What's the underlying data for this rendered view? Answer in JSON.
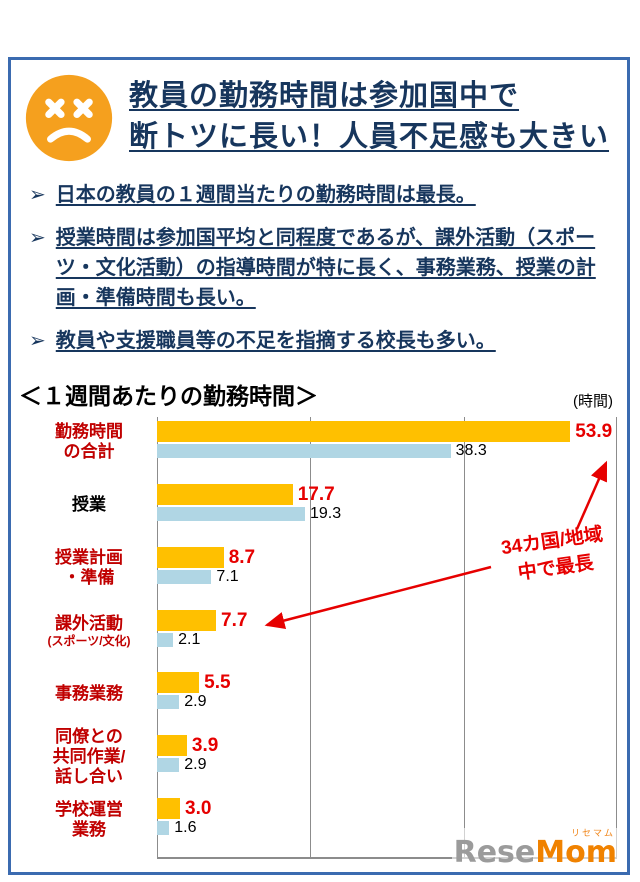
{
  "header": {
    "title_line1": "教員の勤務時間は参加国中で",
    "title_line2": "断トツに長い！人員不足感も大きい"
  },
  "bullets": [
    {
      "marker": "➢",
      "text": "日本の教員の１週間当たりの勤務時間は最長。"
    },
    {
      "marker": "➢",
      "text": "授業時間は参加国平均と同程度であるが、課外活動（スポーツ・文化活動）の指導時間が特に長く、事務業務、授業の計画・準備時間も長い。"
    },
    {
      "marker": "➢",
      "text": "教員や支援職員等の不足を指摘する校長も多い。"
    }
  ],
  "chart_header": {
    "title": "＜１週間あたりの勤務時間＞",
    "unit": "(時間)"
  },
  "chart_data": {
    "type": "bar",
    "orientation": "horizontal",
    "title": "１週間あたりの勤務時間",
    "unit_label": "時間",
    "xlim": [
      0,
      60
    ],
    "gridlines": [
      0,
      20,
      40,
      60
    ],
    "grid": true,
    "legend": "none",
    "categories": [
      "勤務時間\nの合計",
      "授業",
      "授業計画\n・準備",
      "課外活動\n(スポーツ/文化)",
      "事務業務",
      "同僚との\n共同作業/\n話し合い",
      "学校運営\n業務"
    ],
    "label_colors": [
      "#c00000",
      "#000000",
      "#c00000",
      "#c00000",
      "#c00000",
      "#c00000",
      "#c00000"
    ],
    "series": [
      {
        "name": "orange",
        "color": "#ffc000",
        "values": [
          53.9,
          17.7,
          8.7,
          7.7,
          5.5,
          3.9,
          3.0
        ]
      },
      {
        "name": "light-blue",
        "color": "#b0d6e4",
        "values": [
          38.3,
          19.3,
          7.1,
          2.1,
          2.9,
          2.9,
          1.6
        ]
      }
    ]
  },
  "annotation": {
    "text": "34カ国/地域\n中で最長"
  },
  "logo": {
    "ruby": "リセマム",
    "part1": "Rese",
    "part2": "Mom"
  },
  "colors": {
    "frame_border": "#3b6bb0",
    "title_text": "#17365d",
    "face_icon": "#f5a01e",
    "bar_orange": "#ffc000",
    "bar_blue": "#b0d6e4",
    "value_red": "#e60000",
    "label_dark_red": "#c00000",
    "annotation_red": "#e60000",
    "logo_gray": "#9b9b9b",
    "logo_orange": "#f08200"
  }
}
